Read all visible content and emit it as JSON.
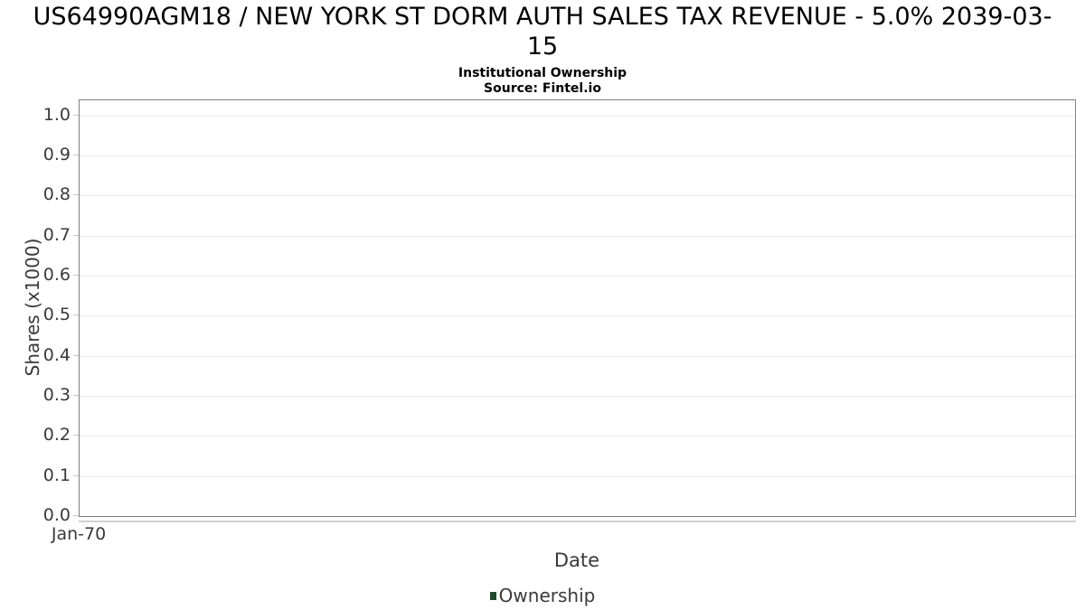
{
  "header": {
    "title_line1": "US64990AGM18 / NEW YORK ST DORM AUTH SALES TAX REVENUE - 5.0% 2039-03-",
    "title_line2": "15",
    "subtitle": "Institutional Ownership",
    "source": "Source: Fintel.io"
  },
  "chart_data": {
    "type": "bar",
    "title": "US64990AGM18 / NEW YORK ST DORM AUTH SALES TAX REVENUE - 5.0% 2039-03-15",
    "subtitle": "Institutional Ownership",
    "source": "Source: Fintel.io",
    "xlabel": "Date",
    "ylabel": "Shares (x1000)",
    "x_ticks": [
      "Jan-70"
    ],
    "y_ticks": [
      0.0,
      0.1,
      0.2,
      0.3,
      0.4,
      0.5,
      0.6,
      0.7,
      0.8,
      0.9,
      1.0
    ],
    "ylim": [
      0,
      1.04
    ],
    "xlim_note": "no data plotted - empty chart",
    "grid": "horizontal",
    "legend_position": "bottom-center",
    "series": [
      {
        "name": "Ownership",
        "color": "#1e4a2a",
        "values": []
      }
    ]
  },
  "colors": {
    "title_text": "#000000",
    "axis_text": "#3a3a3a",
    "plot_border": "#808080",
    "gridline": "#e9e9e9",
    "tick_mark": "#c9c9c9",
    "x_axis_line": "#cfcfcf",
    "legend_marker": "#1e4a2a"
  }
}
